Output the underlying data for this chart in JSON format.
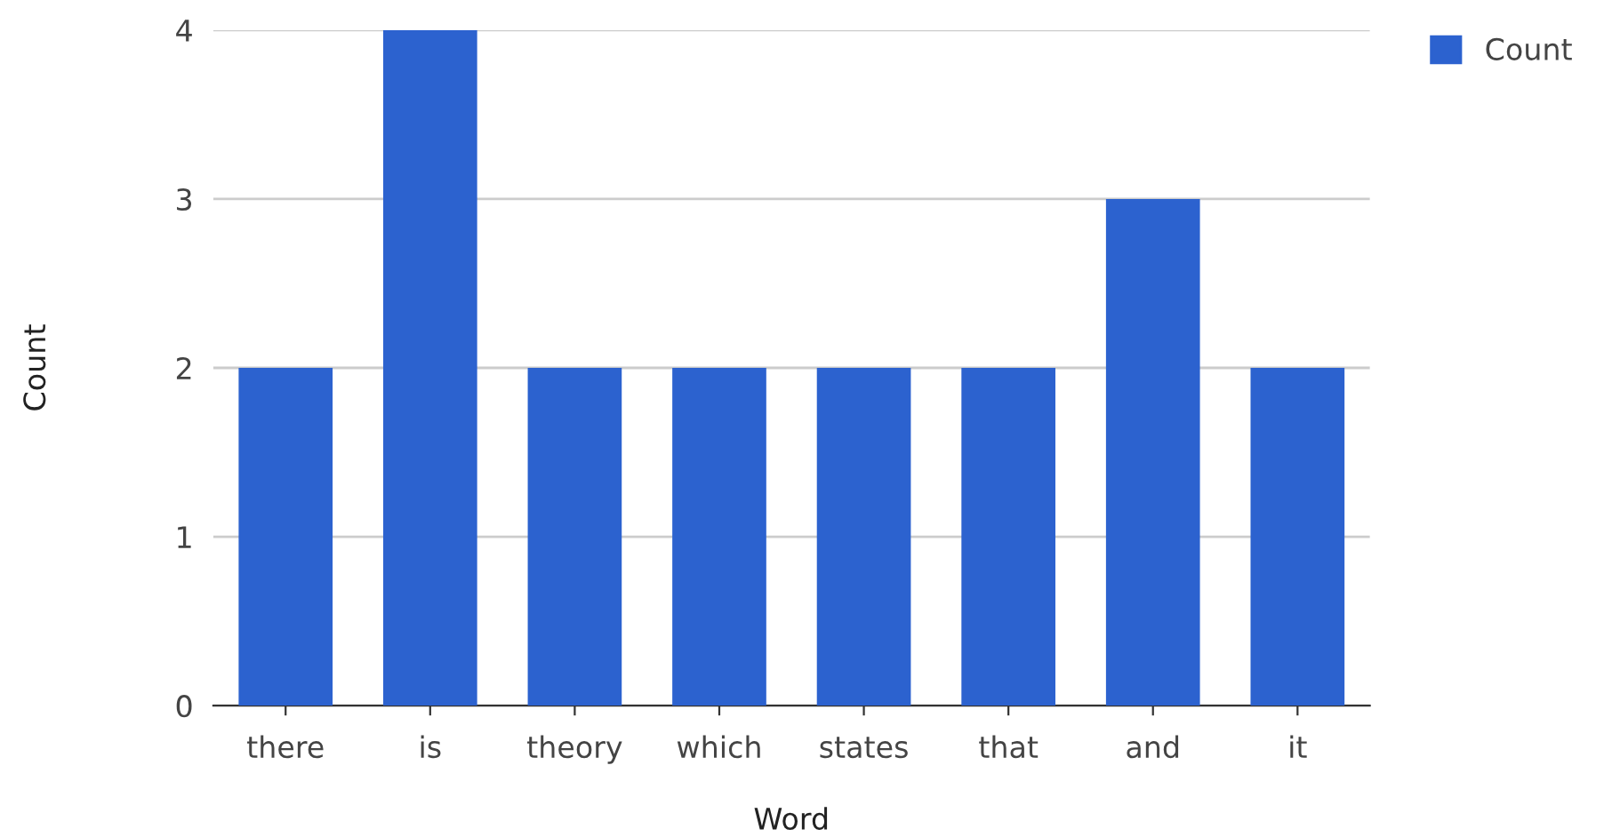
{
  "chart_data": {
    "type": "bar",
    "xlabel": "Word",
    "ylabel": "Count",
    "categories": [
      "there",
      "is",
      "theory",
      "which",
      "states",
      "that",
      "and",
      "it"
    ],
    "series": [
      {
        "name": "Count",
        "color": "#2c62cf",
        "values": [
          2,
          4,
          2,
          2,
          2,
          2,
          3,
          2
        ]
      }
    ],
    "ylim": [
      0,
      4
    ],
    "yticks": [
      0,
      1,
      2,
      3,
      4
    ],
    "grid": "y",
    "legend": "top right"
  }
}
